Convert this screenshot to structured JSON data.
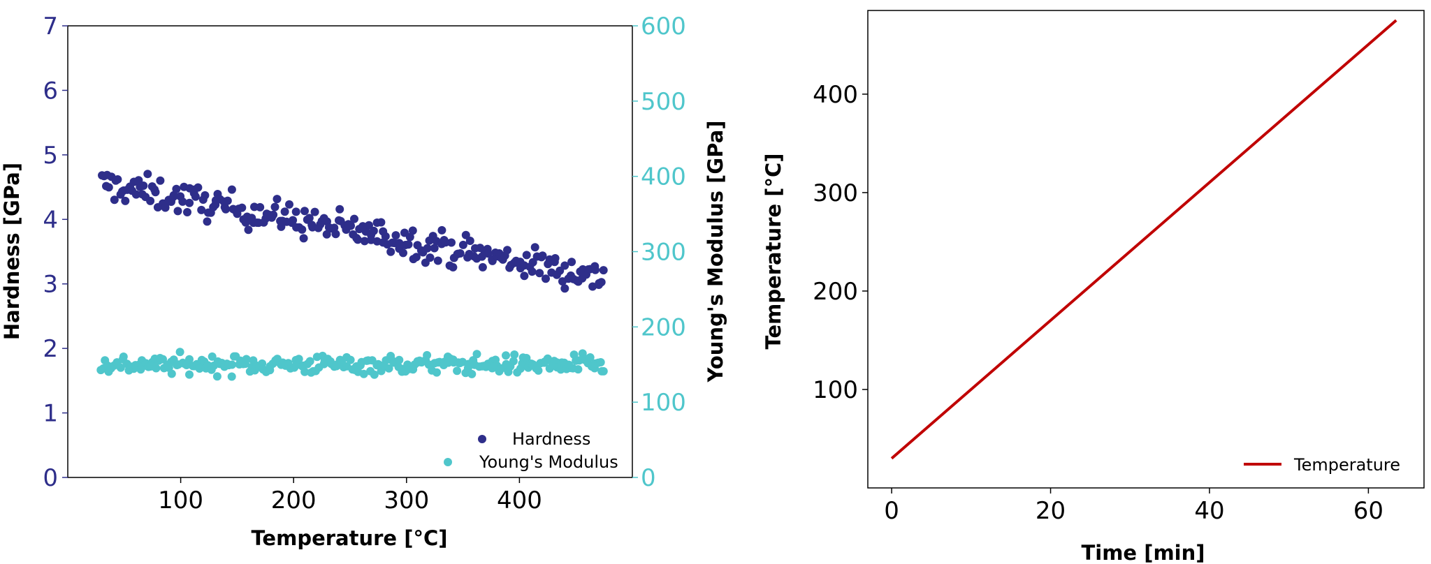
{
  "chart_data": [
    {
      "type": "scatter",
      "xlabel": "Temperature [°C]",
      "ylabel_left": "Hardness [GPa]",
      "ylabel_right": "Young's Modulus [GPa]",
      "xlim": [
        0,
        500
      ],
      "ylim_left": [
        0,
        7
      ],
      "ylim_right": [
        0,
        600
      ],
      "xticks": [
        100,
        200,
        300,
        400
      ],
      "yticks_left": [
        0,
        1,
        2,
        3,
        4,
        5,
        6,
        7
      ],
      "yticks_right": [
        0,
        100,
        200,
        300,
        400,
        500,
        600
      ],
      "grid": false,
      "legend_position": "bottom-right",
      "colors": {
        "hardness": "#2e2e8a",
        "modulus": "#4fc6cb",
        "left_axis": "#2e2e8a",
        "right_axis": "#4fc6cb"
      },
      "series": [
        {
          "name": "Hardness",
          "axis": "left",
          "trend": {
            "x_start": 30,
            "x_end": 475,
            "y_start": 4.55,
            "y_end": 3.1,
            "scatter": 0.3,
            "count": 250
          }
        },
        {
          "name": "Young's Modulus",
          "axis": "right",
          "trend": {
            "x_start": 30,
            "x_end": 475,
            "y_start": 150,
            "y_end": 150,
            "scatter": 15,
            "count": 250
          }
        }
      ]
    },
    {
      "type": "line",
      "xlabel": "Time [min]",
      "ylabel": "Temperature [°C]",
      "xticks": [
        0,
        20,
        40,
        60
      ],
      "yticks": [
        100,
        200,
        300,
        400
      ],
      "xlim": [
        -3,
        67
      ],
      "ylim": [
        0,
        485
      ],
      "grid": false,
      "legend_position": "bottom-right",
      "series": [
        {
          "name": "Temperature",
          "color": "#c00000",
          "x": [
            0,
            63.5
          ],
          "y": [
            30,
            475
          ]
        }
      ]
    }
  ]
}
